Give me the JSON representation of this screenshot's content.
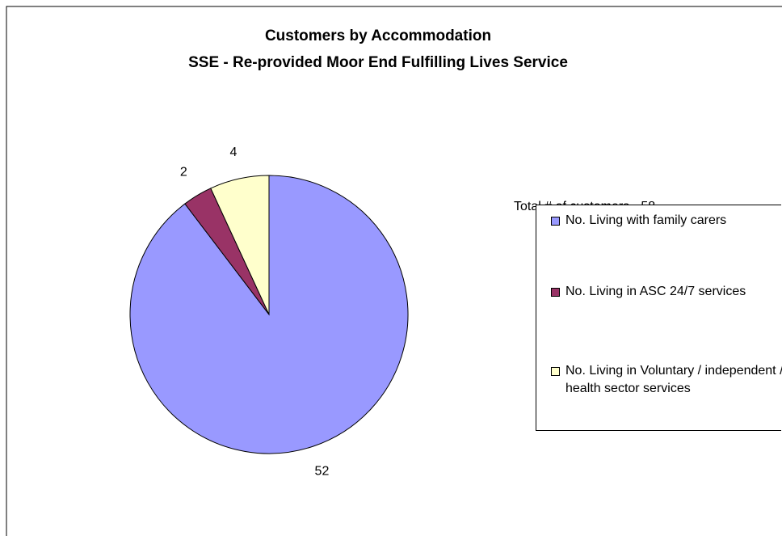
{
  "chart_data": {
    "type": "pie",
    "title": "Customers by Accommodation",
    "subtitle": "SSE - Re-provided Moor End Fulfilling Lives Service",
    "legend_title": "Total # of customers - 58",
    "categories": [
      "No. Living with family carers",
      "No. Living in ASC 24/7 services",
      "No. Living in Voluntary / independent / health sector services"
    ],
    "values": [
      52,
      2,
      4
    ],
    "colors": [
      "#9999ff",
      "#993366",
      "#ffffcc"
    ],
    "legend": "right"
  }
}
